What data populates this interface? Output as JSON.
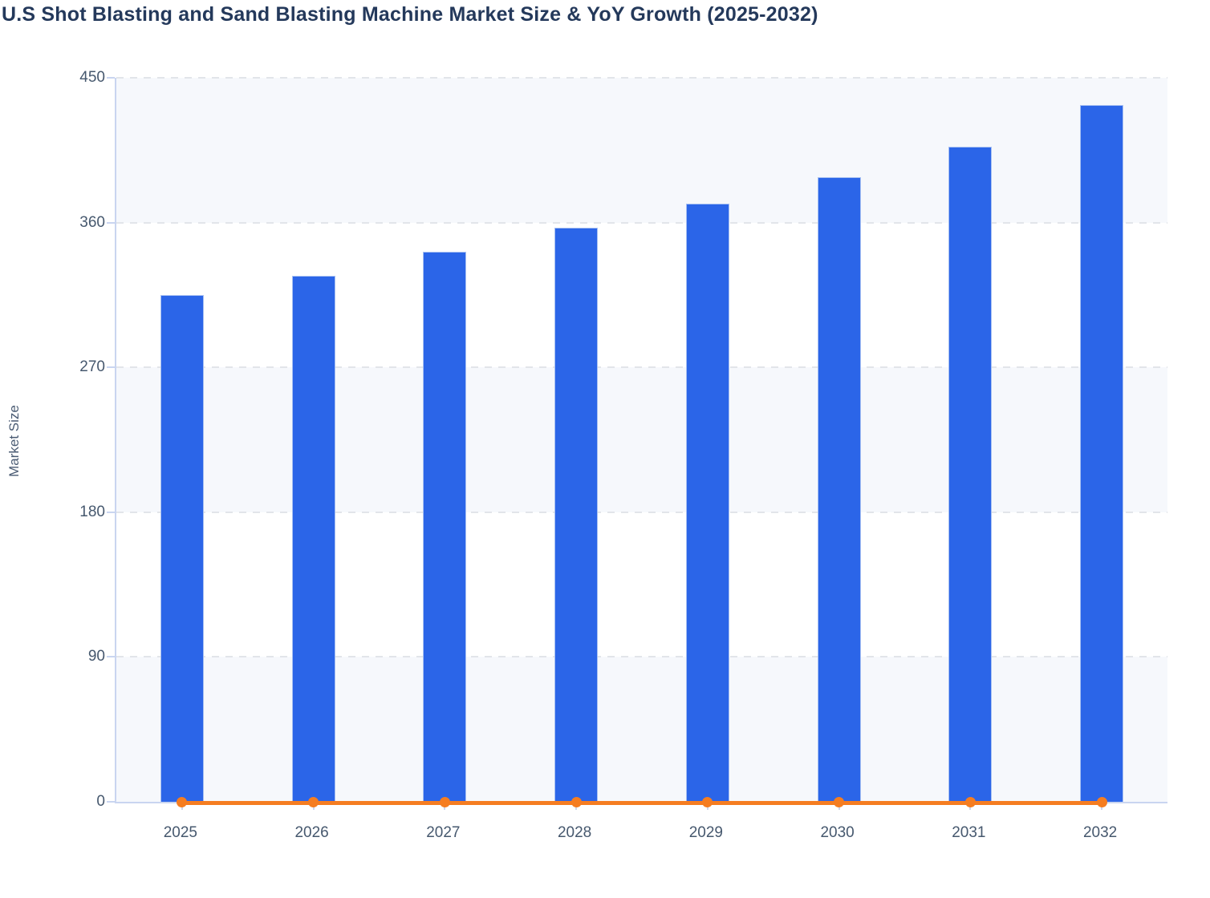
{
  "chart_data": {
    "type": "bar",
    "title": "U.S Shot Blasting and Sand Blasting Machine Market Size & YoY Growth (2025-2032)",
    "xlabel": "",
    "ylabel": "Market Size",
    "categories": [
      "2025",
      "2026",
      "2027",
      "2028",
      "2029",
      "2030",
      "2031",
      "2032"
    ],
    "series": [
      {
        "name": "Market Size",
        "type": "column",
        "color": "#2b65e8",
        "values": [
          315,
          327,
          342,
          357,
          372,
          388,
          407,
          433
        ]
      },
      {
        "name": "YoY Growth",
        "type": "line",
        "color": "#f57d21",
        "marker": "circle",
        "values": [
          0,
          0,
          0,
          0,
          0,
          0,
          0,
          0
        ]
      }
    ],
    "ylim": [
      0,
      450
    ],
    "yticks": [
      0,
      90,
      180,
      270,
      360,
      450
    ],
    "grid": "horizontal-dashed",
    "legend_position": "none",
    "alternating_band_ranges": [
      [
        0,
        90
      ],
      [
        180,
        270
      ],
      [
        360,
        450
      ]
    ]
  },
  "palette": {
    "title_color": "#24395b",
    "axis_label_color": "#4a5b73",
    "tick_label_color": "#46586e",
    "axis_line_color": "#c9d5f0",
    "gridline_color": "#e2e5ea",
    "band_color": "#f6f8fc",
    "bar_color": "#2b65e8",
    "bar_border_color": "#a7c0f2",
    "line_color": "#f57d21",
    "background": "#ffffff"
  }
}
